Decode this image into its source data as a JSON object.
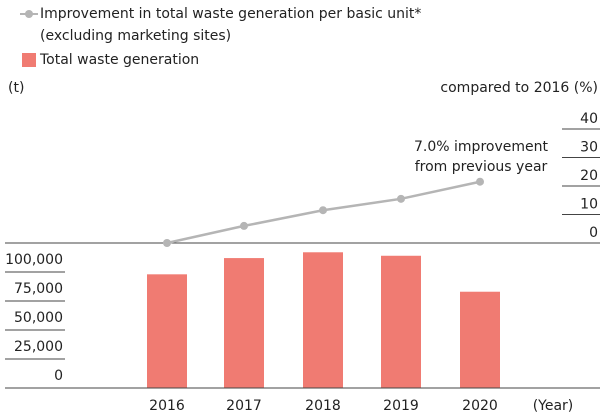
{
  "chart_data": [
    {
      "type": "line",
      "categories": [
        "2016",
        "2017",
        "2018",
        "2019",
        "2020"
      ],
      "series": [
        {
          "name": "Improvement in total waste generation per basic unit* (excluding marketing sites)",
          "color": "#b5b5b5",
          "values": [
            0,
            6,
            11.5,
            15.5,
            21.5
          ]
        }
      ],
      "ylim": [
        0,
        40
      ],
      "yticks": [
        0,
        10,
        20,
        30,
        40
      ],
      "y_label": "compared to 2016 (%)",
      "annotation": "7.0% improvement from previous year"
    },
    {
      "type": "bar",
      "categories": [
        "2016",
        "2017",
        "2018",
        "2019",
        "2020"
      ],
      "series": [
        {
          "name": "Total waste generation",
          "color": "#f07b72",
          "values": [
            98000,
            112000,
            117000,
            114000,
            83000
          ]
        }
      ],
      "ylim": [
        0,
        120000
      ],
      "yticks": [
        0,
        {
          "value": 25000,
          "label": "25,000"
        },
        {
          "value": 50000,
          "label": "50,000"
        },
        {
          "value": 75000,
          "label": "75,000"
        },
        {
          "value": 100000,
          "label": "100,000"
        }
      ],
      "y_label": "(t)",
      "x_label": "(Year)"
    }
  ]
}
